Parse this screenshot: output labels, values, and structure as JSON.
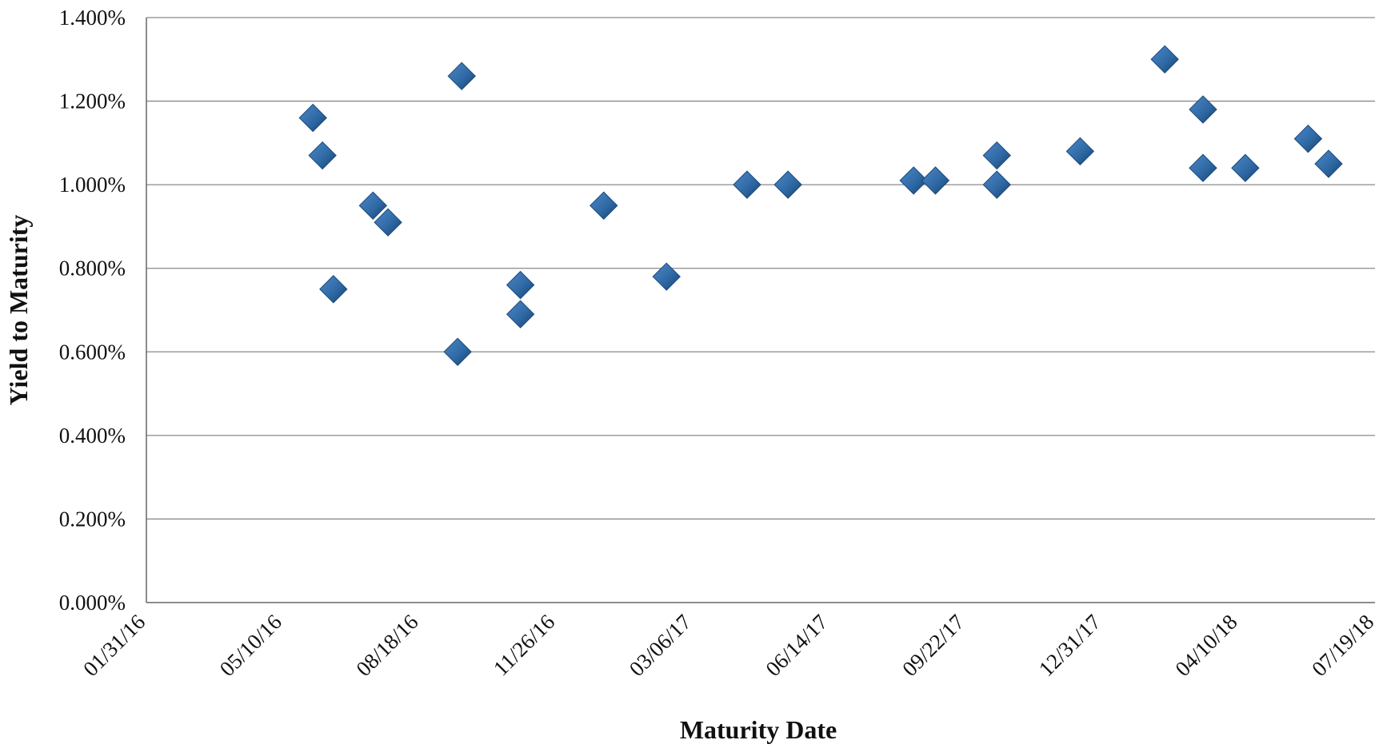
{
  "chart_data": {
    "type": "scatter",
    "xlabel": "Maturity Date",
    "ylabel": "Yield to Maturity",
    "xlim": [
      "01/31/16",
      "07/19/18"
    ],
    "ylim": [
      0,
      1.4
    ],
    "x_tick_labels": [
      "01/31/16",
      "05/10/16",
      "08/18/16",
      "11/26/16",
      "03/06/17",
      "06/14/17",
      "09/22/17",
      "12/31/17",
      "04/10/18",
      "07/19/18"
    ],
    "y_tick_labels": [
      "0.000%",
      "0.200%",
      "0.400%",
      "0.600%",
      "0.800%",
      "1.000%",
      "1.200%",
      "1.400%"
    ],
    "grid": "horizontal",
    "marker": "diamond",
    "marker_color": "#2f6aa6",
    "points": [
      {
        "x": "06/01/16",
        "y": 1.16
      },
      {
        "x": "06/08/16",
        "y": 1.07
      },
      {
        "x": "06/16/16",
        "y": 0.75
      },
      {
        "x": "07/15/16",
        "y": 0.95
      },
      {
        "x": "07/26/16",
        "y": 0.91
      },
      {
        "x": "09/15/16",
        "y": 0.6
      },
      {
        "x": "09/18/16",
        "y": 1.26
      },
      {
        "x": "10/31/16",
        "y": 0.76
      },
      {
        "x": "10/31/16",
        "y": 0.69
      },
      {
        "x": "12/31/16",
        "y": 0.95
      },
      {
        "x": "02/15/17",
        "y": 0.78
      },
      {
        "x": "04/15/17",
        "y": 1.0
      },
      {
        "x": "05/15/17",
        "y": 1.0
      },
      {
        "x": "08/15/17",
        "y": 1.01
      },
      {
        "x": "08/31/17",
        "y": 1.01
      },
      {
        "x": "10/15/17",
        "y": 1.0
      },
      {
        "x": "10/15/17",
        "y": 1.07
      },
      {
        "x": "12/15/17",
        "y": 1.08
      },
      {
        "x": "02/15/18",
        "y": 1.3
      },
      {
        "x": "03/15/18",
        "y": 1.18
      },
      {
        "x": "03/15/18",
        "y": 1.04
      },
      {
        "x": "04/15/18",
        "y": 1.04
      },
      {
        "x": "05/31/18",
        "y": 1.11
      },
      {
        "x": "06/15/18",
        "y": 1.05
      }
    ]
  }
}
